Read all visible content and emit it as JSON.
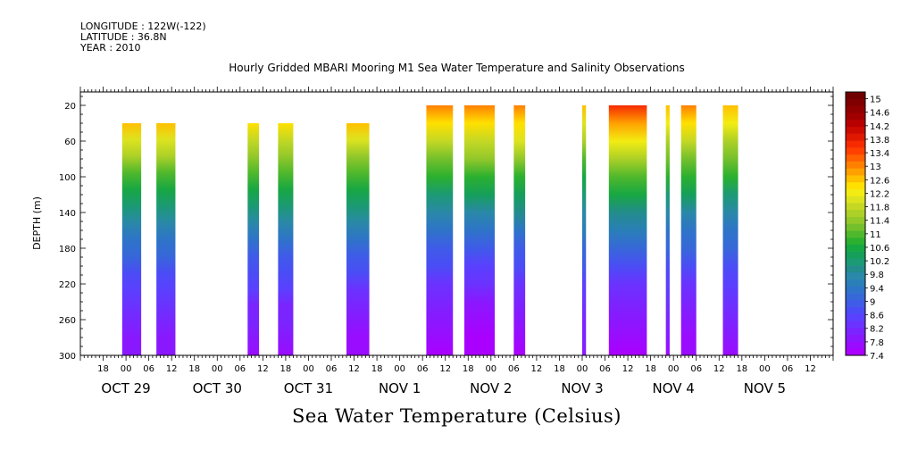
{
  "header": {
    "longitude": "LONGITUDE : 122W(-122)",
    "latitude": "LATITUDE : 36.8N",
    "year": "YEAR : 2010"
  },
  "chart_data": {
    "type": "heatmap",
    "title": "Hourly Gridded MBARI Mooring M1 Sea Water Temperature and Salinity Observations",
    "xlabel": "Sea Water Temperature (Celsius)",
    "ylabel": "DEPTH (m)",
    "ylim": [
      300,
      5
    ],
    "y_ticks": [
      20,
      60,
      100,
      140,
      180,
      220,
      260,
      300
    ],
    "x_range_hours": [
      "Oct 28 2010 12:00",
      "Nov 5 2010 18:00"
    ],
    "x_hour_ticks": [
      "18",
      "00",
      "06",
      "12",
      "18",
      "00",
      "06",
      "12",
      "18",
      "00",
      "06",
      "12",
      "18",
      "00",
      "06",
      "12",
      "18",
      "00",
      "06",
      "12",
      "18",
      "00",
      "06",
      "12",
      "18",
      "00",
      "06",
      "12",
      "18",
      "00",
      "06",
      "12"
    ],
    "x_day_labels": [
      "OCT 29",
      "OCT 30",
      "OCT 31",
      "NOV  1",
      "NOV  2",
      "NOV  3",
      "NOV  4",
      "NOV  5"
    ],
    "colorbar": {
      "min": 7.4,
      "max": 15.0,
      "step": 0.2,
      "labels": [
        "15",
        "14.6",
        "14.2",
        "13.8",
        "13.4",
        "13",
        "12.6",
        "12.2",
        "11.8",
        "11.4",
        "11",
        "10.6",
        "10.2",
        "9.8",
        "9.4",
        "9",
        "8.6",
        "8.2",
        "7.8",
        "7.4"
      ],
      "colors": [
        "#aa00ff",
        "#9a0cff",
        "#8a18ff",
        "#7a25ff",
        "#6a33ff",
        "#5a40ff",
        "#4a4df5",
        "#3f5be8",
        "#3668d8",
        "#2e74c8",
        "#2a7fb8",
        "#2a88a8",
        "#238c8c",
        "#1b9a74",
        "#159f5a",
        "#17a743",
        "#2bb02f",
        "#4fb82c",
        "#74c02c",
        "#93c82a",
        "#acd027",
        "#c4d824",
        "#dde31f",
        "#f3ec12",
        "#ffe000",
        "#ffc000",
        "#ffa000",
        "#ff8000",
        "#ff6000",
        "#ff4000",
        "#f62a00",
        "#e01800",
        "#cc0a00",
        "#b80000",
        "#a20000",
        "#900000",
        "#800000",
        "#700000"
      ]
    },
    "observation_segments": [
      {
        "start": "Oct 28 23:00",
        "end": "Oct 29 04:00",
        "depth_top": 40,
        "surface_temp": 12.4,
        "bottom_temp": 7.9
      },
      {
        "start": "Oct 29 08:00",
        "end": "Oct 29 13:00",
        "depth_top": 40,
        "surface_temp": 12.4,
        "bottom_temp": 7.9
      },
      {
        "start": "Oct 30 08:00",
        "end": "Oct 30 11:00",
        "depth_top": 40,
        "surface_temp": 12.3,
        "bottom_temp": 7.8
      },
      {
        "start": "Oct 30 16:00",
        "end": "Oct 30 20:00",
        "depth_top": 40,
        "surface_temp": 12.3,
        "bottom_temp": 7.8
      },
      {
        "start": "Oct 31 10:00",
        "end": "Oct 31 16:00",
        "depth_top": 40,
        "surface_temp": 12.4,
        "bottom_temp": 7.7
      },
      {
        "start": "Nov 1 07:00",
        "end": "Nov 1 14:00",
        "depth_top": 20,
        "surface_temp": 12.8,
        "bottom_temp": 7.6
      },
      {
        "start": "Nov 1 17:00",
        "end": "Nov 2 01:00",
        "depth_top": 20,
        "surface_temp": 13.0,
        "bottom_temp": 7.5
      },
      {
        "start": "Nov 2 06:00",
        "end": "Nov 2 09:00",
        "depth_top": 20,
        "surface_temp": 13.0,
        "bottom_temp": 7.6
      },
      {
        "start": "Nov 3 00:00",
        "end": "Nov 3 01:00",
        "depth_top": 20,
        "surface_temp": 12.4,
        "bottom_temp": 8.0
      },
      {
        "start": "Nov 3 07:00",
        "end": "Nov 3 17:00",
        "depth_top": 20,
        "surface_temp": 13.4,
        "bottom_temp": 7.6
      },
      {
        "start": "Nov 3 22:00",
        "end": "Nov 3 23:00",
        "depth_top": 20,
        "surface_temp": 12.6,
        "bottom_temp": 7.8
      },
      {
        "start": "Nov 4 02:00",
        "end": "Nov 4 06:00",
        "depth_top": 20,
        "surface_temp": 12.8,
        "bottom_temp": 7.7
      },
      {
        "start": "Nov 4 13:00",
        "end": "Nov 4 17:00",
        "depth_top": 20,
        "surface_temp": 12.6,
        "bottom_temp": 7.8
      }
    ]
  }
}
